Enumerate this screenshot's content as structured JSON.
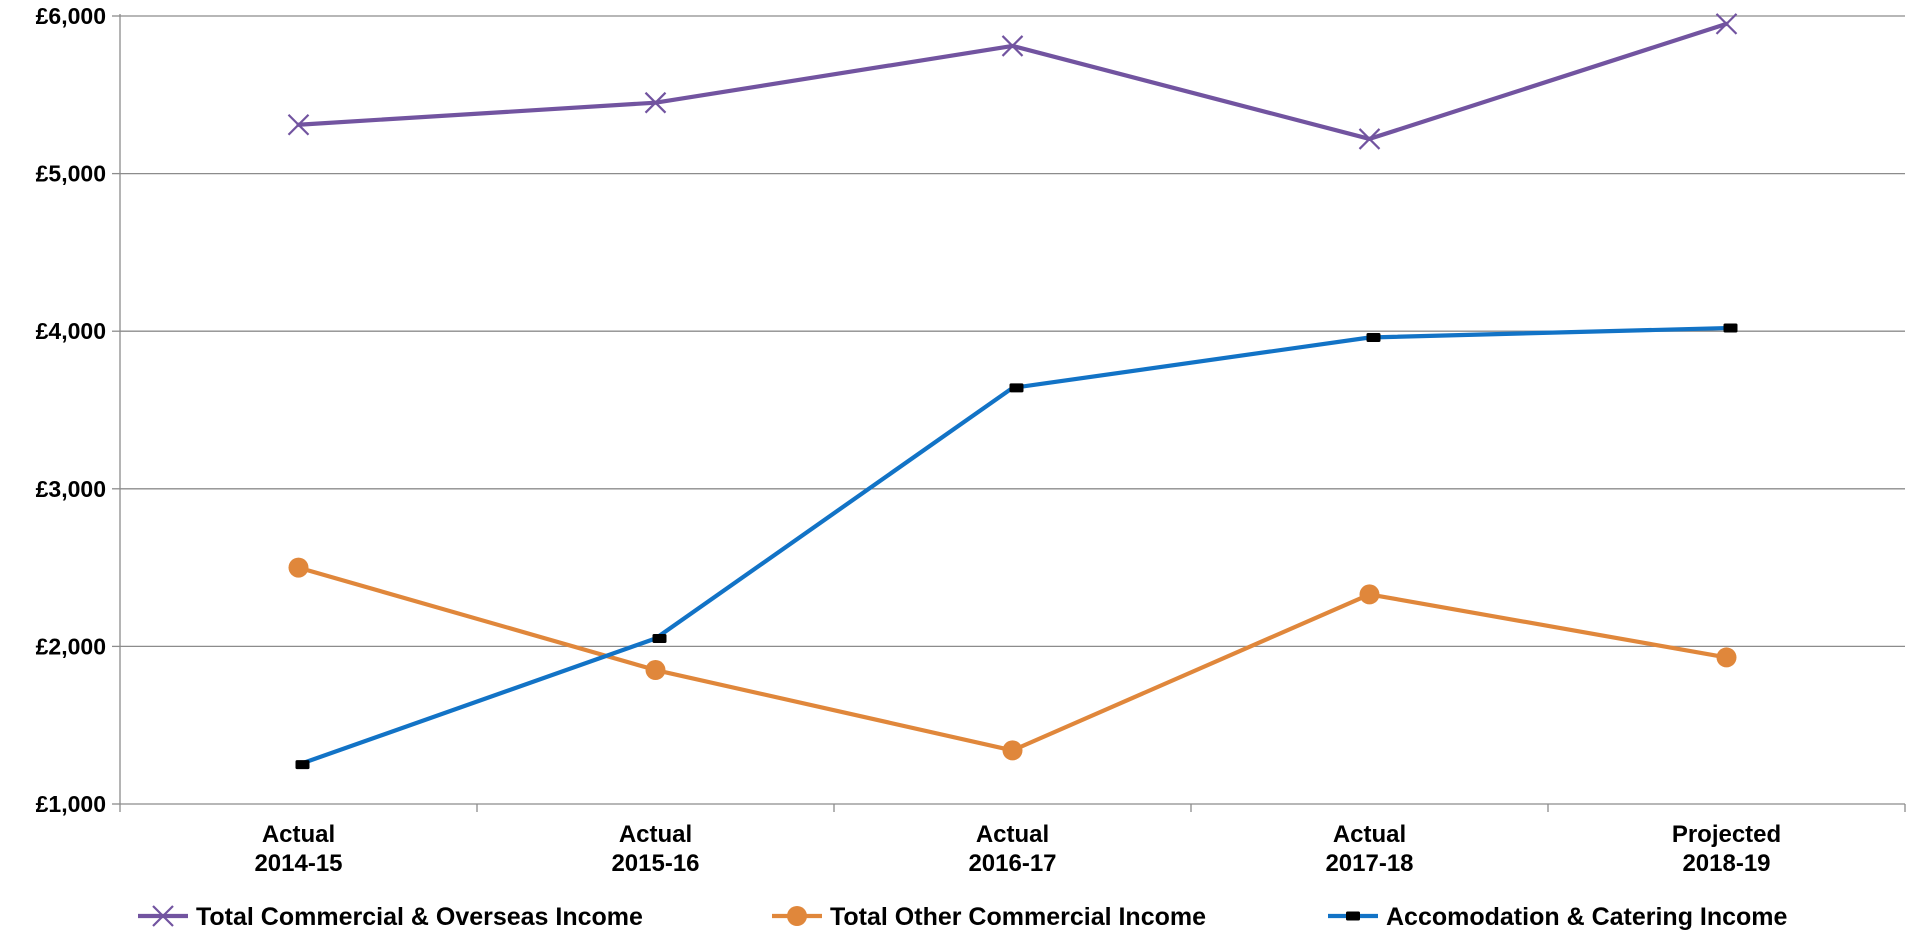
{
  "chart_data": {
    "type": "line",
    "title": "",
    "xlabel": "",
    "ylabel": "",
    "ylim": [
      1000,
      6000
    ],
    "y_ticks": [
      1000,
      2000,
      3000,
      4000,
      5000,
      6000
    ],
    "y_tick_labels": [
      "£1,000",
      "£2,000",
      "£3,000",
      "£4,000",
      "£5,000",
      "£6,000"
    ],
    "categories": [
      [
        "Actual",
        "2014-15"
      ],
      [
        "Actual",
        "2015-16"
      ],
      [
        "Actual",
        "2016-17"
      ],
      [
        "Actual",
        "2017-18"
      ],
      [
        "Projected",
        "2018-19"
      ]
    ],
    "grid": true,
    "legend_position": "bottom",
    "series": [
      {
        "name": "Total Commercial & Overseas Income",
        "color": "#7254A0",
        "marker": "x",
        "values": [
          5310,
          5450,
          5810,
          5220,
          5950
        ]
      },
      {
        "name": "Total Other Commercial Income",
        "color": "#E0873B",
        "marker": "circle",
        "values": [
          2500,
          1850,
          1340,
          2330,
          1930
        ]
      },
      {
        "name": "Accomodation & Catering Income",
        "color": "#1273C6",
        "marker": "dash",
        "values": [
          1250,
          2050,
          3640,
          3960,
          4020
        ]
      }
    ]
  }
}
